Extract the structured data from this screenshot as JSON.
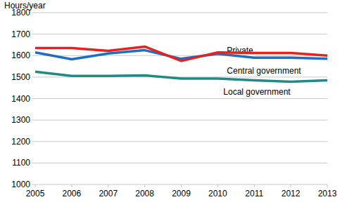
{
  "chart_data": {
    "type": "line",
    "ylabel": "Hours/year",
    "x": [
      2005,
      2006,
      2007,
      2008,
      2009,
      2010,
      2011,
      2012,
      2013
    ],
    "xlim": [
      2005,
      2013
    ],
    "xticks": [
      2005,
      2006,
      2007,
      2008,
      2009,
      2010,
      2011,
      2012,
      2013
    ],
    "ylim": [
      1000,
      1800
    ],
    "yticks": [
      1000,
      1100,
      1200,
      1300,
      1400,
      1500,
      1600,
      1700,
      1800
    ],
    "grid": true,
    "series": [
      {
        "name": "Private",
        "color": "#e8211f",
        "values": [
          1635,
          1635,
          1622,
          1642,
          1575,
          1615,
          1612,
          1612,
          1600
        ]
      },
      {
        "name": "Central government",
        "color": "#1e6ec2",
        "values": [
          1615,
          1583,
          1610,
          1625,
          1585,
          1608,
          1590,
          1590,
          1585
        ]
      },
      {
        "name": "Local government",
        "color": "#218a86",
        "values": [
          1525,
          1505,
          1505,
          1508,
          1493,
          1493,
          1485,
          1478,
          1485
        ]
      }
    ]
  }
}
